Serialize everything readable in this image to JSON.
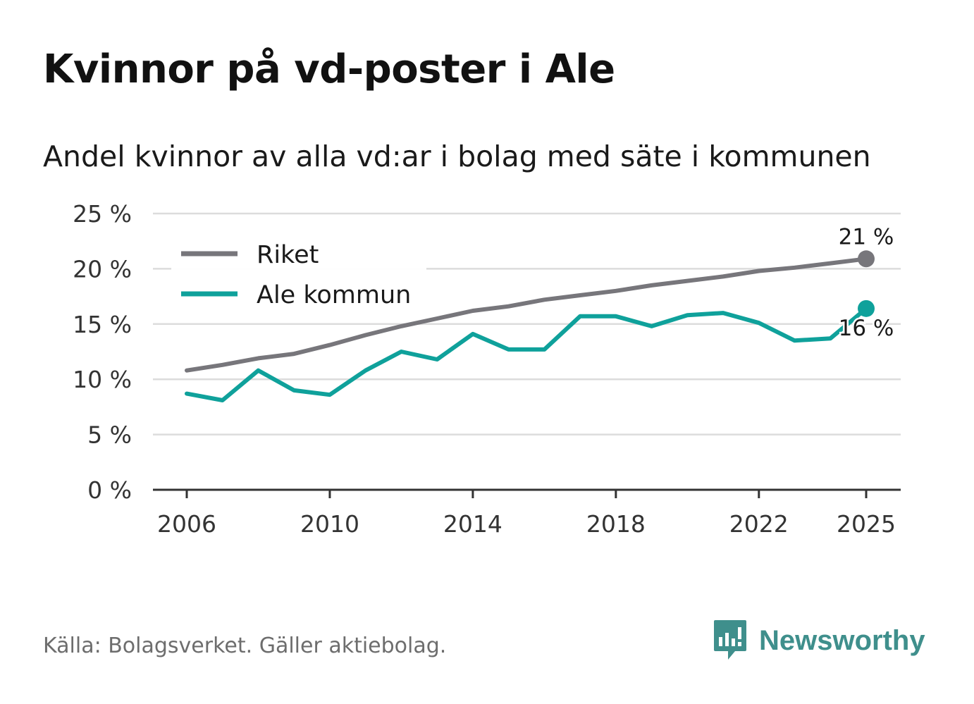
{
  "header": {
    "title": "Kvinnor på vd-poster i Ale",
    "subtitle": "Andel kvinnor av alla vd:ar i bolag med säte i kommunen"
  },
  "footer": {
    "source": "Källa: Bolagsverket. Gäller aktiebolag.",
    "brand": "Newsworthy"
  },
  "colors": {
    "riket": "#77767b",
    "ale": "#0fa19b",
    "grid": "#dcdcdc",
    "axis": "#333333",
    "brand": "#3f8f8c"
  },
  "chart_data": {
    "type": "line",
    "title": "Kvinnor på vd-poster i Ale",
    "subtitle": "Andel kvinnor av alla vd:ar i bolag med säte i kommunen",
    "xlabel": "",
    "ylabel": "",
    "xlim": [
      2006,
      2025
    ],
    "ylim": [
      0,
      25
    ],
    "x_ticks": [
      2006,
      2010,
      2014,
      2018,
      2022,
      2025
    ],
    "y_ticks": [
      0,
      5,
      10,
      15,
      20,
      25
    ],
    "y_tick_labels": [
      "0 %",
      "5 %",
      "10 %",
      "15 %",
      "20 %",
      "25 %"
    ],
    "grid": true,
    "legend_position": "top-left",
    "x": [
      2006,
      2007,
      2008,
      2009,
      2010,
      2011,
      2012,
      2013,
      2014,
      2015,
      2016,
      2017,
      2018,
      2019,
      2020,
      2021,
      2022,
      2023,
      2024,
      2025
    ],
    "series": [
      {
        "name": "Riket",
        "color": "#77767b",
        "values": [
          10.8,
          11.3,
          11.9,
          12.3,
          13.1,
          14.0,
          14.8,
          15.5,
          16.2,
          16.6,
          17.2,
          17.6,
          18.0,
          18.5,
          18.9,
          19.3,
          19.8,
          20.1,
          20.5,
          20.9
        ],
        "end_label": "21 %"
      },
      {
        "name": "Ale kommun",
        "color": "#0fa19b",
        "values": [
          8.7,
          8.1,
          10.8,
          9.0,
          8.6,
          10.8,
          12.5,
          11.8,
          14.1,
          12.7,
          12.7,
          15.7,
          15.7,
          14.8,
          15.8,
          16.0,
          15.1,
          13.5,
          13.7,
          16.4
        ],
        "end_label": "16 %"
      }
    ]
  }
}
